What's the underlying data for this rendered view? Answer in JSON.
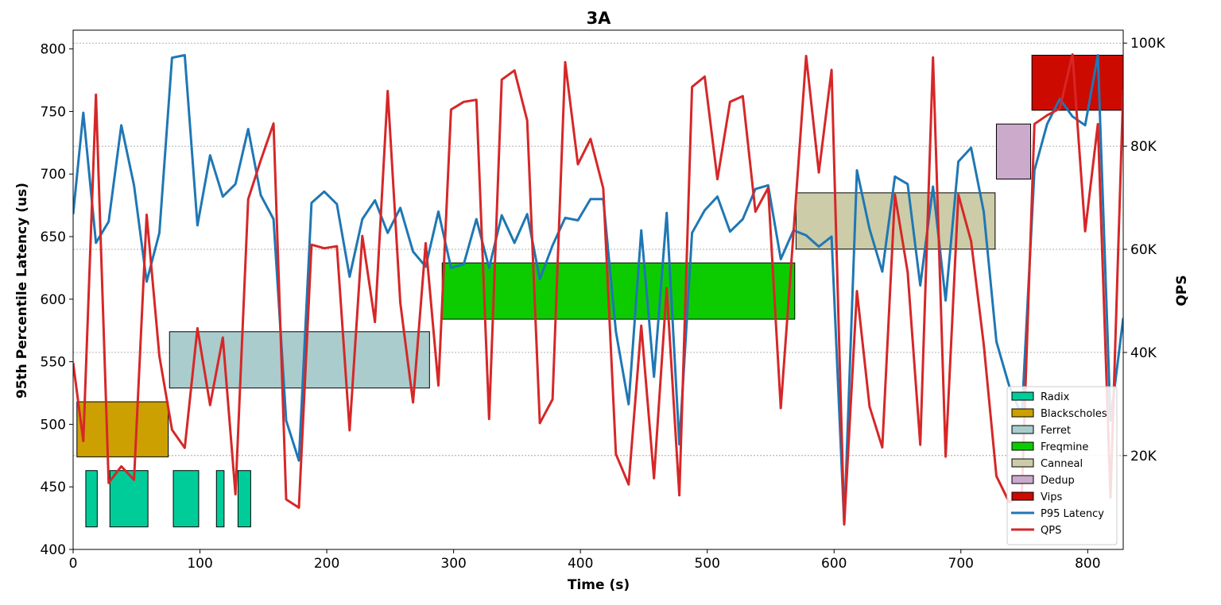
{
  "chart_data": {
    "type": "line",
    "title": "3A",
    "xlabel": "Time (s)",
    "ylabel_left": "95th Percentile Latency (us)",
    "ylabel_right": "QPS",
    "xlim": [
      0,
      828
    ],
    "ylim_left": [
      400,
      815
    ],
    "ylim_right": [
      1800,
      102500
    ],
    "x_ticks": [
      0,
      100,
      200,
      300,
      400,
      500,
      600,
      700,
      800
    ],
    "y_left_ticks": [
      400,
      450,
      500,
      550,
      600,
      650,
      700,
      750,
      800
    ],
    "y_right_ticks": [
      20000,
      40000,
      60000,
      80000,
      100000
    ],
    "y_right_tick_labels": [
      "20K",
      "40K",
      "60K",
      "80K",
      "100K"
    ],
    "grid": "horizontal dashed lines on right axis ticks",
    "legend_position": "lower-right",
    "colors": {
      "Radix": "#00cc99",
      "Blackscholes": "#cca000",
      "Ferret": "#aacccc",
      "Freqmine": "#0ccc00",
      "Canneal": "#cccca8",
      "Dedup": "#ccaacc",
      "Vips": "#cc0a00",
      "latency": "#1f77b4",
      "qps": "#d62728"
    },
    "jobs": [
      {
        "name": "Radix",
        "segments": [
          [
            10,
            19
          ],
          [
            29,
            59
          ],
          [
            79,
            99
          ],
          [
            113,
            119
          ],
          [
            130,
            140
          ]
        ],
        "y_range": [
          418,
          463
        ]
      },
      {
        "name": "Blackscholes",
        "segments": [
          [
            3,
            75
          ]
        ],
        "y_range": [
          474,
          518
        ]
      },
      {
        "name": "Ferret",
        "segments": [
          [
            76,
            281
          ]
        ],
        "y_range": [
          529,
          574
        ]
      },
      {
        "name": "Freqmine",
        "segments": [
          [
            291,
            569
          ]
        ],
        "y_range": [
          584,
          629
        ]
      },
      {
        "name": "Canneal",
        "segments": [
          [
            570,
            727
          ]
        ],
        "y_range": [
          640,
          685
        ]
      },
      {
        "name": "Dedup",
        "segments": [
          [
            728,
            755
          ]
        ],
        "y_range": [
          696,
          740
        ]
      },
      {
        "name": "Vips",
        "segments": [
          [
            756,
            828
          ]
        ],
        "y_range": [
          751,
          795
        ]
      }
    ],
    "series": [
      {
        "name": "P95 Latency",
        "axis": "left",
        "x": [
          0,
          8,
          18,
          28,
          38,
          48,
          58,
          68,
          78,
          88,
          98,
          108,
          118,
          128,
          138,
          148,
          158,
          168,
          178,
          188,
          198,
          208,
          218,
          228,
          238,
          248,
          258,
          268,
          278,
          288,
          298,
          308,
          318,
          328,
          338,
          348,
          358,
          368,
          378,
          388,
          398,
          408,
          418,
          428,
          438,
          448,
          458,
          468,
          478,
          488,
          498,
          508,
          518,
          528,
          538,
          548,
          558,
          568,
          578,
          588,
          598,
          608,
          618,
          628,
          638,
          648,
          658,
          668,
          678,
          688,
          698,
          708,
          718,
          728,
          738,
          748,
          758,
          768,
          778,
          788,
          798,
          808,
          818,
          828
        ],
        "values": [
          668,
          749,
          645,
          662,
          739,
          691,
          614,
          653,
          793,
          795,
          659,
          715,
          682,
          692,
          736,
          683,
          664,
          503,
          471,
          677,
          686,
          676,
          618,
          664,
          679,
          653,
          673,
          638,
          626,
          670,
          625,
          628,
          664,
          625,
          667,
          645,
          668,
          616,
          643,
          665,
          663,
          680,
          680,
          574,
          516,
          655,
          538,
          669,
          484,
          653,
          671,
          682,
          654,
          664,
          688,
          691,
          632,
          655,
          651,
          642,
          650,
          420,
          703,
          656,
          622,
          698,
          692,
          611,
          690,
          599,
          710,
          721,
          670,
          566,
          531,
          507,
          703,
          740,
          760,
          746,
          739,
          795,
          503,
          585
        ]
      },
      {
        "name": "QPS",
        "axis": "right",
        "x": [
          0,
          8,
          18,
          28,
          38,
          48,
          58,
          68,
          78,
          88,
          98,
          108,
          118,
          128,
          138,
          148,
          158,
          168,
          178,
          188,
          198,
          208,
          218,
          228,
          238,
          248,
          258,
          268,
          278,
          288,
          298,
          308,
          318,
          328,
          338,
          348,
          358,
          368,
          378,
          388,
          398,
          408,
          418,
          428,
          438,
          448,
          458,
          468,
          478,
          488,
          498,
          508,
          518,
          528,
          538,
          548,
          558,
          568,
          578,
          588,
          598,
          608,
          618,
          628,
          638,
          648,
          658,
          668,
          678,
          688,
          698,
          708,
          718,
          728,
          738,
          748,
          758,
          768,
          778,
          788,
          798,
          808,
          818,
          828
        ],
        "values": [
          38000,
          22800,
          90000,
          14700,
          17900,
          15300,
          66700,
          39300,
          25000,
          21500,
          44700,
          29800,
          42900,
          12500,
          69700,
          77300,
          84400,
          11500,
          9900,
          60900,
          60200,
          60600,
          24900,
          62600,
          45900,
          90700,
          49600,
          30300,
          61200,
          33600,
          87100,
          88600,
          89000,
          27100,
          92900,
          94700,
          85000,
          26300,
          30900,
          96300,
          76500,
          81400,
          71800,
          20300,
          14400,
          45200,
          15600,
          52500,
          12300,
          91500,
          93500,
          73600,
          88600,
          89700,
          67300,
          71900,
          29200,
          63200,
          97500,
          74900,
          94800,
          6700,
          51900,
          29500,
          21600,
          70600,
          55600,
          22100,
          97200,
          19800,
          70600,
          61600,
          41600,
          16000,
          11000,
          12300,
          84300,
          86000,
          87300,
          97800,
          63500,
          84300,
          11900,
          91000
        ]
      }
    ]
  }
}
